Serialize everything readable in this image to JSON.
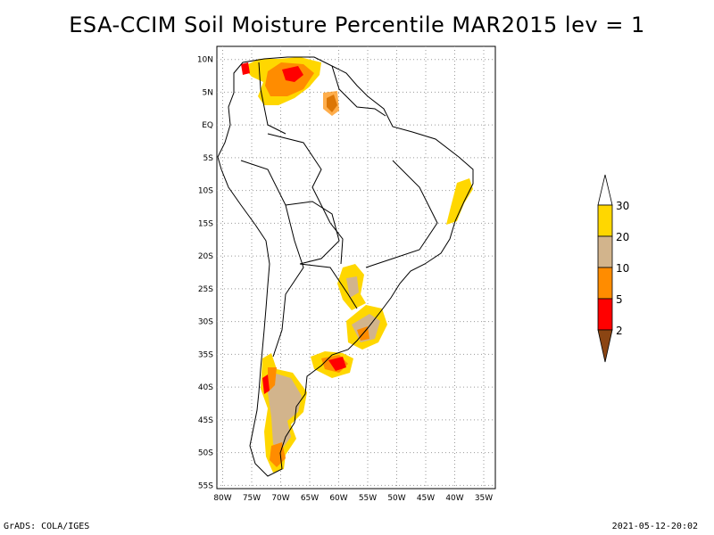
{
  "title": "ESA-CCIM Soil Moisture Percentile MAR2015 lev = 1",
  "map": {
    "lat_labels": [
      "10N",
      "5N",
      "EQ",
      "5S",
      "10S",
      "15S",
      "20S",
      "25S",
      "30S",
      "35S",
      "40S",
      "45S",
      "50S",
      "55S"
    ],
    "lat_values": [
      10,
      5,
      0,
      -5,
      -10,
      -15,
      -20,
      -25,
      -30,
      -35,
      -40,
      -45,
      -50,
      -55
    ],
    "lon_labels": [
      "80W",
      "75W",
      "70W",
      "65W",
      "60W",
      "55W",
      "50W",
      "45W",
      "40W",
      "35W"
    ],
    "lon_values": [
      -80,
      -75,
      -70,
      -65,
      -60,
      -55,
      -50,
      -45,
      -40,
      -35
    ],
    "lat_range": [
      -55.5,
      12
    ],
    "lon_range": [
      -81,
      -33
    ],
    "grid": true
  },
  "legend": {
    "labels": [
      "2",
      "5",
      "10",
      "20",
      "30"
    ],
    "colors": {
      "lt2": "#8b4513",
      "2to5": "#ff0000",
      "5to10": "#ff8c00",
      "10to20": "#d2b48c",
      "20to30": "#ffd700",
      "gt30": "#ffffff"
    }
  },
  "footer": {
    "left": "GrADS: COLA/IGES",
    "right": "2021-05-12-20:02"
  }
}
